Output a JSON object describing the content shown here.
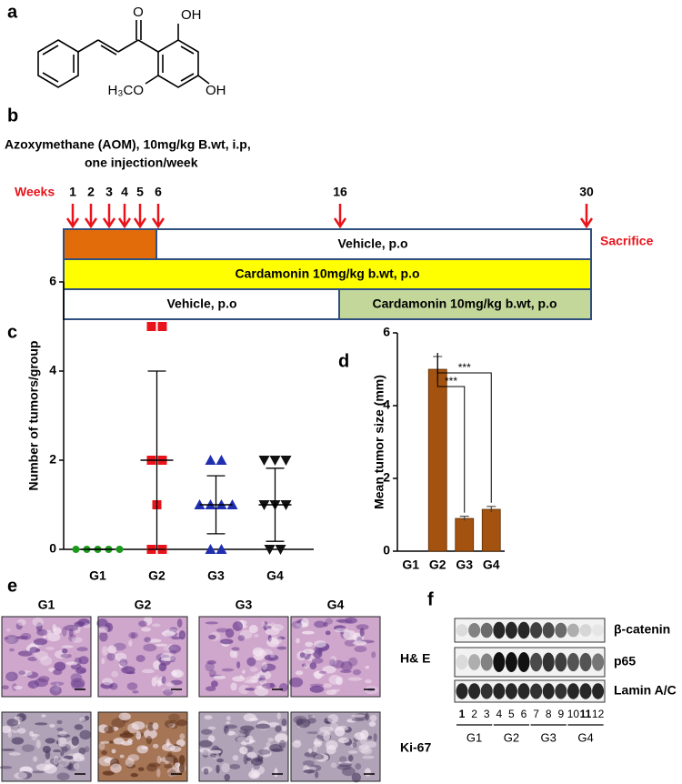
{
  "panel_labels": [
    "a",
    "b",
    "c",
    "d",
    "e",
    "f"
  ],
  "structure": {
    "carbonyl": "O",
    "hydroxyl_top": "OH",
    "methoxy": "H₃CO",
    "hydroxyl_bottom": "OH"
  },
  "timeline": {
    "treatment_line1": "Azoxymethane (AOM),  10mg/kg B.wt, i.p,",
    "treatment_line2": "one injection/week",
    "weeks_label": "Weeks",
    "weeks": [
      "1",
      "2",
      "3",
      "4",
      "5",
      "6",
      "16",
      "30"
    ],
    "end_label": "Sacrifice",
    "row1": "Vehicle, p.o",
    "row2": "Cardamonin 10mg/kg b.wt, p.o",
    "row3_left": "Vehicle, p.o",
    "row3_right": "Cardamonin 10mg/kg b.wt, p.o"
  },
  "chart_data": [
    {
      "type": "scatter",
      "y_label": "Number of tumors/group",
      "categories": [
        "G1",
        "G2",
        "G3",
        "G4"
      ],
      "points": [
        [
          0,
          0,
          0,
          0,
          0
        ],
        [
          5,
          5,
          2,
          2,
          1,
          0,
          0
        ],
        [
          2,
          2,
          1,
          1,
          1,
          1,
          0,
          0
        ],
        [
          2,
          2,
          2,
          1,
          1,
          1,
          0,
          0
        ]
      ],
      "mean": [
        0,
        2,
        1,
        1
      ],
      "error": [
        0,
        2,
        0.65,
        0.82
      ],
      "colors": [
        "#1a9a1a",
        "#e8141c",
        "#1f2fb0",
        "#111111"
      ],
      "markers": [
        "circle",
        "square",
        "triangle",
        "triangle-down"
      ],
      "ylim": [
        0,
        6
      ],
      "yticks": [
        0,
        2,
        4,
        6
      ]
    },
    {
      "type": "bar",
      "y_label": "Mean tumor size (mm)",
      "categories": [
        "G1",
        "G2",
        "G3",
        "G4"
      ],
      "values": [
        0,
        5,
        0.9,
        1.15
      ],
      "error": [
        0,
        0.35,
        0.06,
        0.08
      ],
      "color": "#a3520f",
      "ylim": [
        0,
        6
      ],
      "yticks": [
        0,
        2,
        4,
        6
      ],
      "annotations": [
        "***",
        "***"
      ]
    }
  ],
  "histology": {
    "groups": [
      "G1",
      "G2",
      "G3",
      "G4"
    ],
    "stains": [
      "H& E",
      "Ki-67"
    ]
  },
  "western_blot": {
    "proteins": [
      "β-catenin",
      "p65",
      "Lamin A/C"
    ],
    "lanes": [
      "1",
      "2",
      "3",
      "4",
      "5",
      "6",
      "7",
      "8",
      "9",
      "10",
      "11",
      "12"
    ],
    "groups": [
      "G1",
      "G2",
      "G3",
      "G4"
    ]
  }
}
